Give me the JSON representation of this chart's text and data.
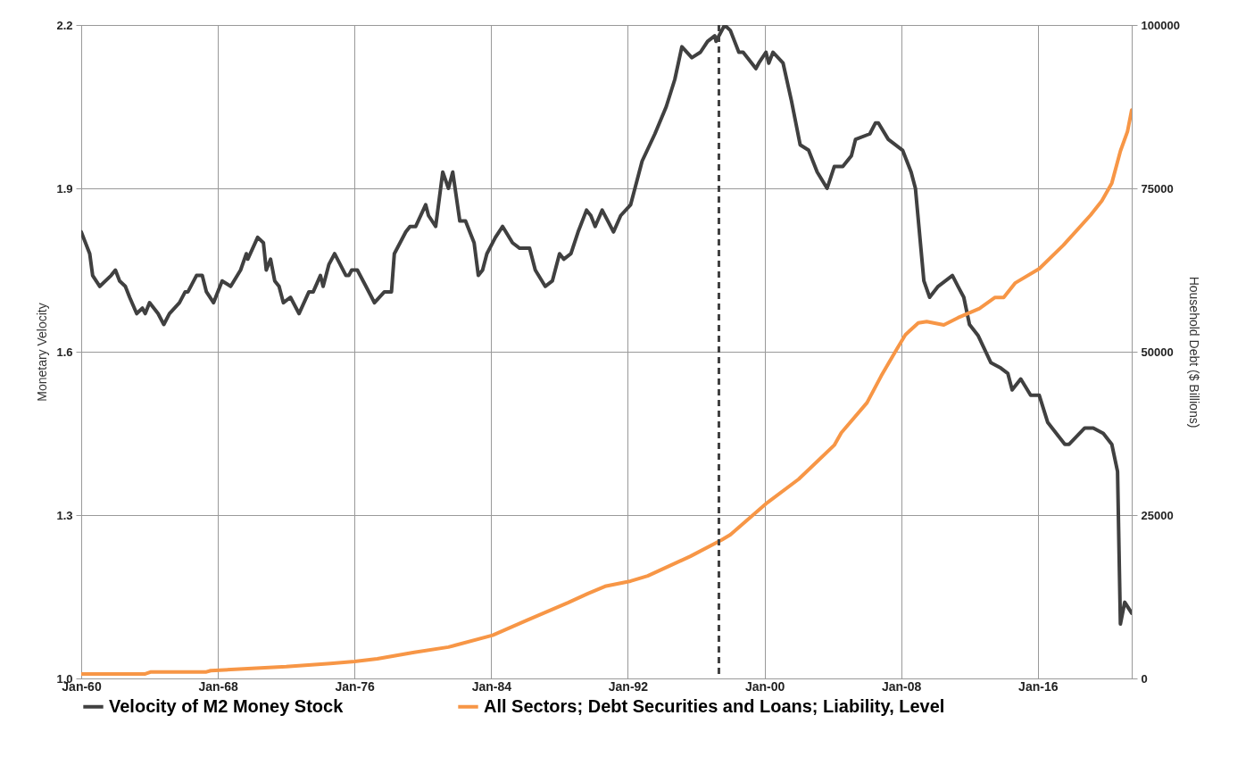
{
  "chart_data": {
    "type": "line",
    "ylabel": "Monetary Velocity",
    "y2label": "Household Debt ($ Billions)",
    "xlim": [
      "1960-01",
      "2021-07"
    ],
    "xticks": [
      {
        "value": "1960-01",
        "label": "Jan-60"
      },
      {
        "value": "1968-01",
        "label": "Jan-68"
      },
      {
        "value": "1976-01",
        "label": "Jan-76"
      },
      {
        "value": "1984-01",
        "label": "Jan-84"
      },
      {
        "value": "1992-01",
        "label": "Jan-92"
      },
      {
        "value": "2000-01",
        "label": "Jan-00"
      },
      {
        "value": "2008-01",
        "label": "Jan-08"
      },
      {
        "value": "2016-01",
        "label": "Jan-16"
      }
    ],
    "ylim": [
      1.0,
      2.2
    ],
    "yticks": [
      {
        "value": 1.0,
        "label": "1.0"
      },
      1.3,
      1.6,
      1.9,
      2.2
    ],
    "y2lim": [
      0,
      100000
    ],
    "y2ticks": [
      0,
      25000,
      50000,
      75000,
      100000
    ],
    "grid": true,
    "legend": "bottom",
    "ref_lines": [
      {
        "axis": "x",
        "value": "1997-05",
        "color": "#404040",
        "line_style": "dashed"
      }
    ],
    "series": [
      {
        "name": "Velocity of M2 Money Stock",
        "color": "#404040",
        "x": [
          "1960-01",
          "1960-07",
          "1960-09",
          "1961-02",
          "1961-10",
          "1962-01",
          "1962-04",
          "1962-08",
          "1962-11",
          "1963-04",
          "1963-08",
          "1963-10",
          "1964-01",
          "1964-07",
          "1964-11",
          "1965-03",
          "1965-10",
          "1966-02",
          "1966-04",
          "1966-10",
          "1967-02",
          "1967-05",
          "1967-10",
          "1968-04",
          "1968-10",
          "1969-05",
          "1969-09",
          "1969-10",
          "1970-05",
          "1970-09",
          "1970-11",
          "1971-02",
          "1971-05",
          "1971-08",
          "1971-11",
          "1972-04",
          "1972-10",
          "1973-05",
          "1973-08",
          "1974-01",
          "1974-03",
          "1974-07",
          "1974-11",
          "1975-07",
          "1975-09",
          "1975-11",
          "1976-03",
          "1976-09",
          "1977-01",
          "1977-03",
          "1977-10",
          "1978-03",
          "1978-05",
          "1979-01",
          "1979-04",
          "1979-08",
          "1980-03",
          "1980-05",
          "1980-10",
          "1981-03",
          "1981-07",
          "1981-10",
          "1982-03",
          "1982-07",
          "1983-01",
          "1983-04",
          "1983-07",
          "1983-10",
          "1984-04",
          "1984-09",
          "1985-04",
          "1985-09",
          "1986-04",
          "1986-08",
          "1987-03",
          "1987-08",
          "1988-01",
          "1988-04",
          "1988-09",
          "1989-02",
          "1989-08",
          "1989-11",
          "1990-02",
          "1990-07",
          "1991-03",
          "1991-08",
          "1992-03",
          "1992-11",
          "1993-08",
          "1994-04",
          "1994-10",
          "1995-03",
          "1995-10",
          "1996-04",
          "1996-09",
          "1997-02",
          "1997-03",
          "1997-09",
          "1998-01",
          "1998-07",
          "1998-10",
          "1999-07",
          "1999-09",
          "2000-02",
          "2000-04",
          "2000-07",
          "2001-02",
          "2001-08",
          "2002-02",
          "2002-08",
          "2003-02",
          "2003-09",
          "2004-02",
          "2004-08",
          "2005-02",
          "2005-05",
          "2006-03",
          "2006-07",
          "2006-09",
          "2007-04",
          "2008-02",
          "2008-08",
          "2008-11",
          "2009-05",
          "2009-09",
          "2010-03",
          "2011-01",
          "2011-05",
          "2011-09",
          "2012-01",
          "2012-07",
          "2013-04",
          "2013-11",
          "2014-04",
          "2014-07",
          "2015-01",
          "2015-08",
          "2016-02",
          "2016-08",
          "2017-08",
          "2017-11",
          "2018-10",
          "2019-04",
          "2019-11",
          "2020-05",
          "2020-09",
          "2020-11",
          "2021-02",
          "2021-07"
        ],
        "values": [
          1.82,
          1.78,
          1.74,
          1.72,
          1.74,
          1.75,
          1.73,
          1.72,
          1.7,
          1.67,
          1.68,
          1.67,
          1.69,
          1.67,
          1.65,
          1.67,
          1.69,
          1.71,
          1.71,
          1.74,
          1.74,
          1.71,
          1.69,
          1.73,
          1.72,
          1.75,
          1.78,
          1.77,
          1.81,
          1.8,
          1.75,
          1.77,
          1.73,
          1.72,
          1.69,
          1.7,
          1.67,
          1.71,
          1.71,
          1.74,
          1.72,
          1.76,
          1.78,
          1.74,
          1.74,
          1.75,
          1.75,
          1.72,
          1.7,
          1.69,
          1.71,
          1.71,
          1.78,
          1.82,
          1.83,
          1.83,
          1.87,
          1.85,
          1.83,
          1.93,
          1.9,
          1.93,
          1.84,
          1.84,
          1.8,
          1.74,
          1.75,
          1.78,
          1.81,
          1.83,
          1.8,
          1.79,
          1.79,
          1.75,
          1.72,
          1.73,
          1.78,
          1.77,
          1.78,
          1.82,
          1.86,
          1.85,
          1.83,
          1.86,
          1.82,
          1.85,
          1.87,
          1.95,
          2.0,
          2.05,
          2.1,
          2.16,
          2.14,
          2.15,
          2.17,
          2.18,
          2.17,
          2.2,
          2.19,
          2.15,
          2.15,
          2.12,
          2.13,
          2.15,
          2.13,
          2.15,
          2.13,
          2.06,
          1.98,
          1.97,
          1.93,
          1.9,
          1.94,
          1.94,
          1.96,
          1.99,
          2.0,
          2.02,
          2.02,
          1.99,
          1.97,
          1.93,
          1.9,
          1.73,
          1.7,
          1.72,
          1.74,
          1.72,
          1.7,
          1.65,
          1.63,
          1.58,
          1.57,
          1.56,
          1.53,
          1.55,
          1.52,
          1.52,
          1.47,
          1.43,
          1.43,
          1.46,
          1.46,
          1.45,
          1.43,
          1.38,
          1.1,
          1.14,
          1.12
        ]
      },
      {
        "name": "All Sectors; Debt Securities and Loans; Liability, Level",
        "color": "#f79646",
        "axis": "y2",
        "x": [
          "1960-01",
          "1963-10",
          "1964-02",
          "1967-05",
          "1967-08",
          "1969-10",
          "1972-01",
          "1974-08",
          "1976-01",
          "1977-05",
          "1979-07",
          "1981-07",
          "1984-02",
          "1986-02",
          "1988-07",
          "1989-09",
          "1990-09",
          "1992-03",
          "1993-03",
          "1995-09",
          "1997-07",
          "1998-01",
          "2000-03",
          "2002-01",
          "2004-02",
          "2004-07",
          "2006-01",
          "2006-11",
          "2007-10",
          "2008-04",
          "2009-01",
          "2009-07",
          "2010-07",
          "2011-05",
          "2012-08",
          "2013-07",
          "2014-01",
          "2014-09",
          "2016-02",
          "2017-07",
          "2019-02",
          "2019-10",
          "2020-05",
          "2020-11",
          "2021-04",
          "2021-07"
        ],
        "values": [
          700,
          700,
          1000,
          1000,
          1200,
          1500,
          1800,
          2300,
          2600,
          3000,
          4000,
          4800,
          6600,
          8900,
          11600,
          13000,
          14100,
          14900,
          15700,
          18700,
          21200,
          22000,
          26900,
          30500,
          35700,
          37600,
          42200,
          46300,
          50400,
          52600,
          54400,
          54600,
          54100,
          55200,
          56600,
          58300,
          58300,
          60500,
          62700,
          66300,
          70900,
          73100,
          75800,
          80700,
          83700,
          87000
        ]
      }
    ]
  }
}
